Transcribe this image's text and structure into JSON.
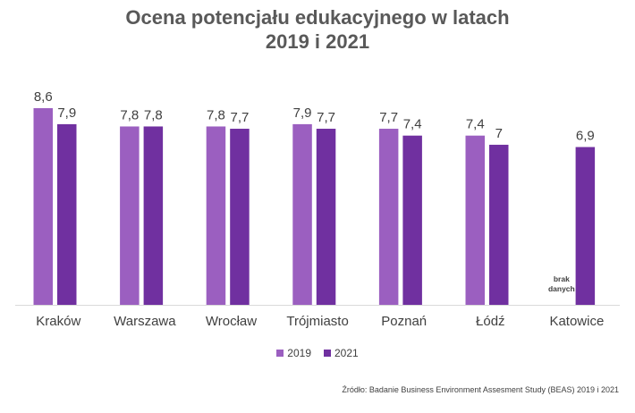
{
  "chart_data": {
    "type": "bar",
    "title_lines": [
      "Ocena potencjału edukacyjnego w latach",
      "2019 i 2021"
    ],
    "categories": [
      "Kraków",
      "Warszawa",
      "Wrocław",
      "Trójmiasto",
      "Poznań",
      "Łódź",
      "Katowice"
    ],
    "series": [
      {
        "name": "2019",
        "color": "#9b5fc0",
        "values": [
          8.6,
          7.8,
          7.8,
          7.9,
          7.7,
          7.4,
          null
        ],
        "labels": [
          "8,6",
          "7,8",
          "7,8",
          "7,9",
          "7,7",
          "7,4",
          null
        ]
      },
      {
        "name": "2021",
        "color": "#7030a0",
        "values": [
          7.9,
          7.8,
          7.7,
          7.7,
          7.4,
          7.0,
          6.9
        ],
        "labels": [
          "7,9",
          "7,8",
          "7,7",
          "7,7",
          "7,4",
          "7",
          "6,9"
        ]
      }
    ],
    "missing_note": {
      "category": "Katowice",
      "series": "2019",
      "lines": [
        "brak",
        "danych"
      ]
    },
    "ylim": [
      0,
      9
    ],
    "grid": false,
    "legend_position": "bottom",
    "source": "Źródło: Badanie Business Environment Assesment Study (BEAS) 2019 i 2021"
  }
}
